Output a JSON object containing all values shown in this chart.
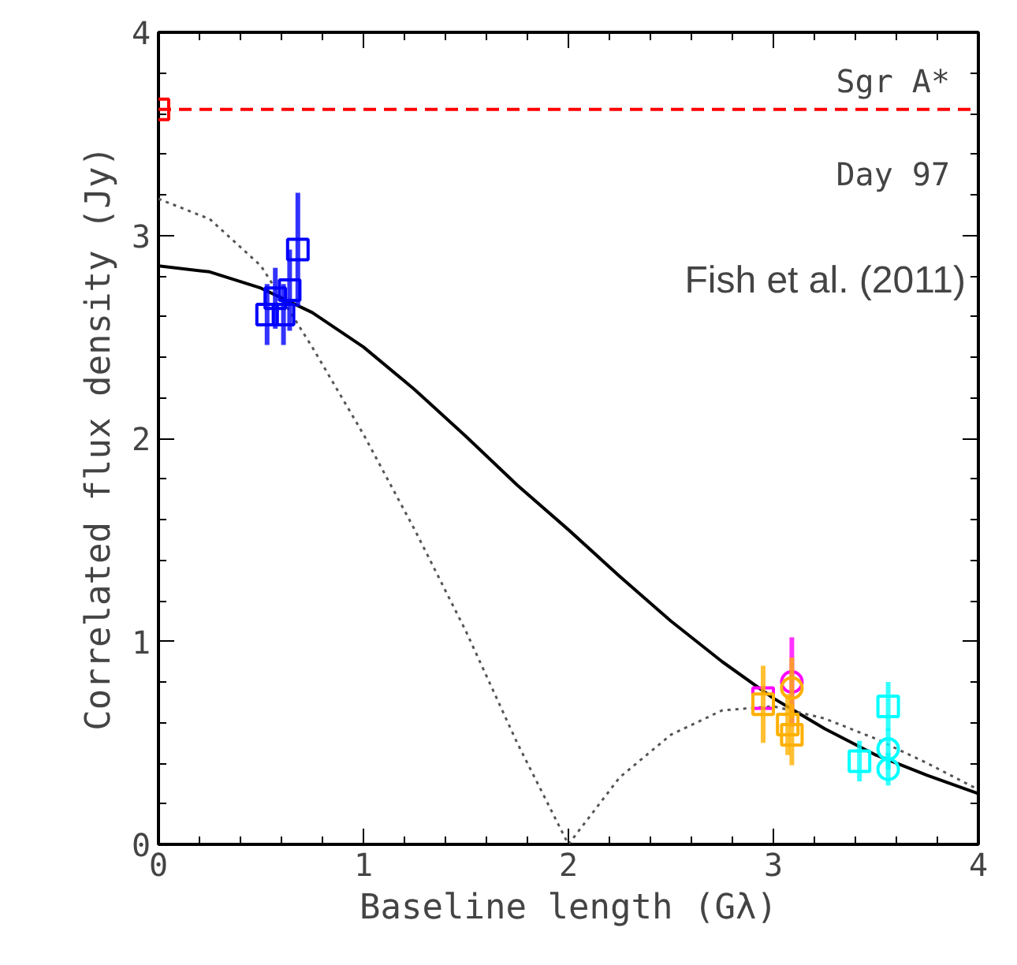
{
  "chart_data": {
    "type": "scatter",
    "xlabel": "Baseline length (Gλ)",
    "ylabel": "Correlated flux density (Jy)",
    "xlim": [
      0,
      4
    ],
    "ylim": [
      0,
      4
    ],
    "xticks": [
      0,
      1,
      2,
      3,
      4
    ],
    "yticks": [
      0,
      1,
      2,
      3,
      4
    ],
    "grid": false,
    "annotations": [
      "Day 97",
      "Fish et al. (2011)"
    ],
    "ref_lines": [
      {
        "axis": "y",
        "value": 3.62,
        "label": "Sgr A*",
        "color": "#ff0000",
        "line_style": "dashed"
      }
    ],
    "series": [
      {
        "type": "line",
        "color": "#000000",
        "line_style": "solid",
        "marker": "none",
        "x": [
          0,
          0.25,
          0.5,
          0.75,
          1,
          1.25,
          1.5,
          1.75,
          2,
          2.25,
          2.5,
          2.75,
          3,
          3.25,
          3.5,
          3.75,
          4
        ],
        "values": [
          2.85,
          2.82,
          2.74,
          2.62,
          2.45,
          2.24,
          2.01,
          1.77,
          1.55,
          1.32,
          1.1,
          0.9,
          0.72,
          0.57,
          0.44,
          0.34,
          0.25
        ]
      },
      {
        "type": "line",
        "color": "#555555",
        "line_style": "dotted",
        "marker": "none",
        "x": [
          0,
          0.25,
          0.5,
          0.75,
          1,
          1.25,
          1.5,
          1.75,
          2,
          2.25,
          2.5,
          2.75,
          3,
          3.25,
          3.5,
          3.75,
          4
        ],
        "values": [
          3.18,
          3.08,
          2.85,
          2.45,
          2.02,
          1.55,
          1.05,
          0.5,
          0.0,
          0.33,
          0.54,
          0.66,
          0.68,
          0.62,
          0.52,
          0.4,
          0.27
        ]
      },
      {
        "color": "#ff0000",
        "marker": "square",
        "x": [
          0
        ],
        "values": [
          3.62
        ]
      },
      {
        "color": "#0000ff",
        "marker": "square",
        "x": [
          0.53,
          0.57,
          0.61,
          0.64,
          0.68
        ],
        "values": [
          2.61,
          2.69,
          2.61,
          2.73,
          2.93
        ],
        "errors": [
          0.15,
          0.15,
          0.15,
          0.2,
          0.28
        ]
      },
      {
        "color": "#ff00ff",
        "marker": "square",
        "x": [
          2.95
        ],
        "values": [
          0.72
        ]
      },
      {
        "color": "#ff00ff",
        "marker": "circle",
        "x": [
          3.09
        ],
        "values": [
          0.8
        ],
        "errors": [
          0.22
        ]
      },
      {
        "color": "#ffb000",
        "marker": "square",
        "x": [
          2.95,
          3.07,
          3.09
        ],
        "values": [
          0.69,
          0.59,
          0.54
        ],
        "errors": [
          0.19,
          0.15,
          0.15
        ]
      },
      {
        "color": "#ffb000",
        "marker": "circle",
        "x": [
          3.09
        ],
        "values": [
          0.77
        ],
        "errors": [
          0.15
        ]
      },
      {
        "color": "#00ffff",
        "marker": "square",
        "x": [
          3.42,
          3.56
        ],
        "values": [
          0.41,
          0.68
        ],
        "errors": [
          0.1,
          0.12
        ]
      },
      {
        "color": "#00ffff",
        "marker": "circle",
        "x": [
          3.56,
          3.56
        ],
        "values": [
          0.47,
          0.37
        ],
        "errors": [
          0.1,
          0.08
        ]
      }
    ]
  }
}
